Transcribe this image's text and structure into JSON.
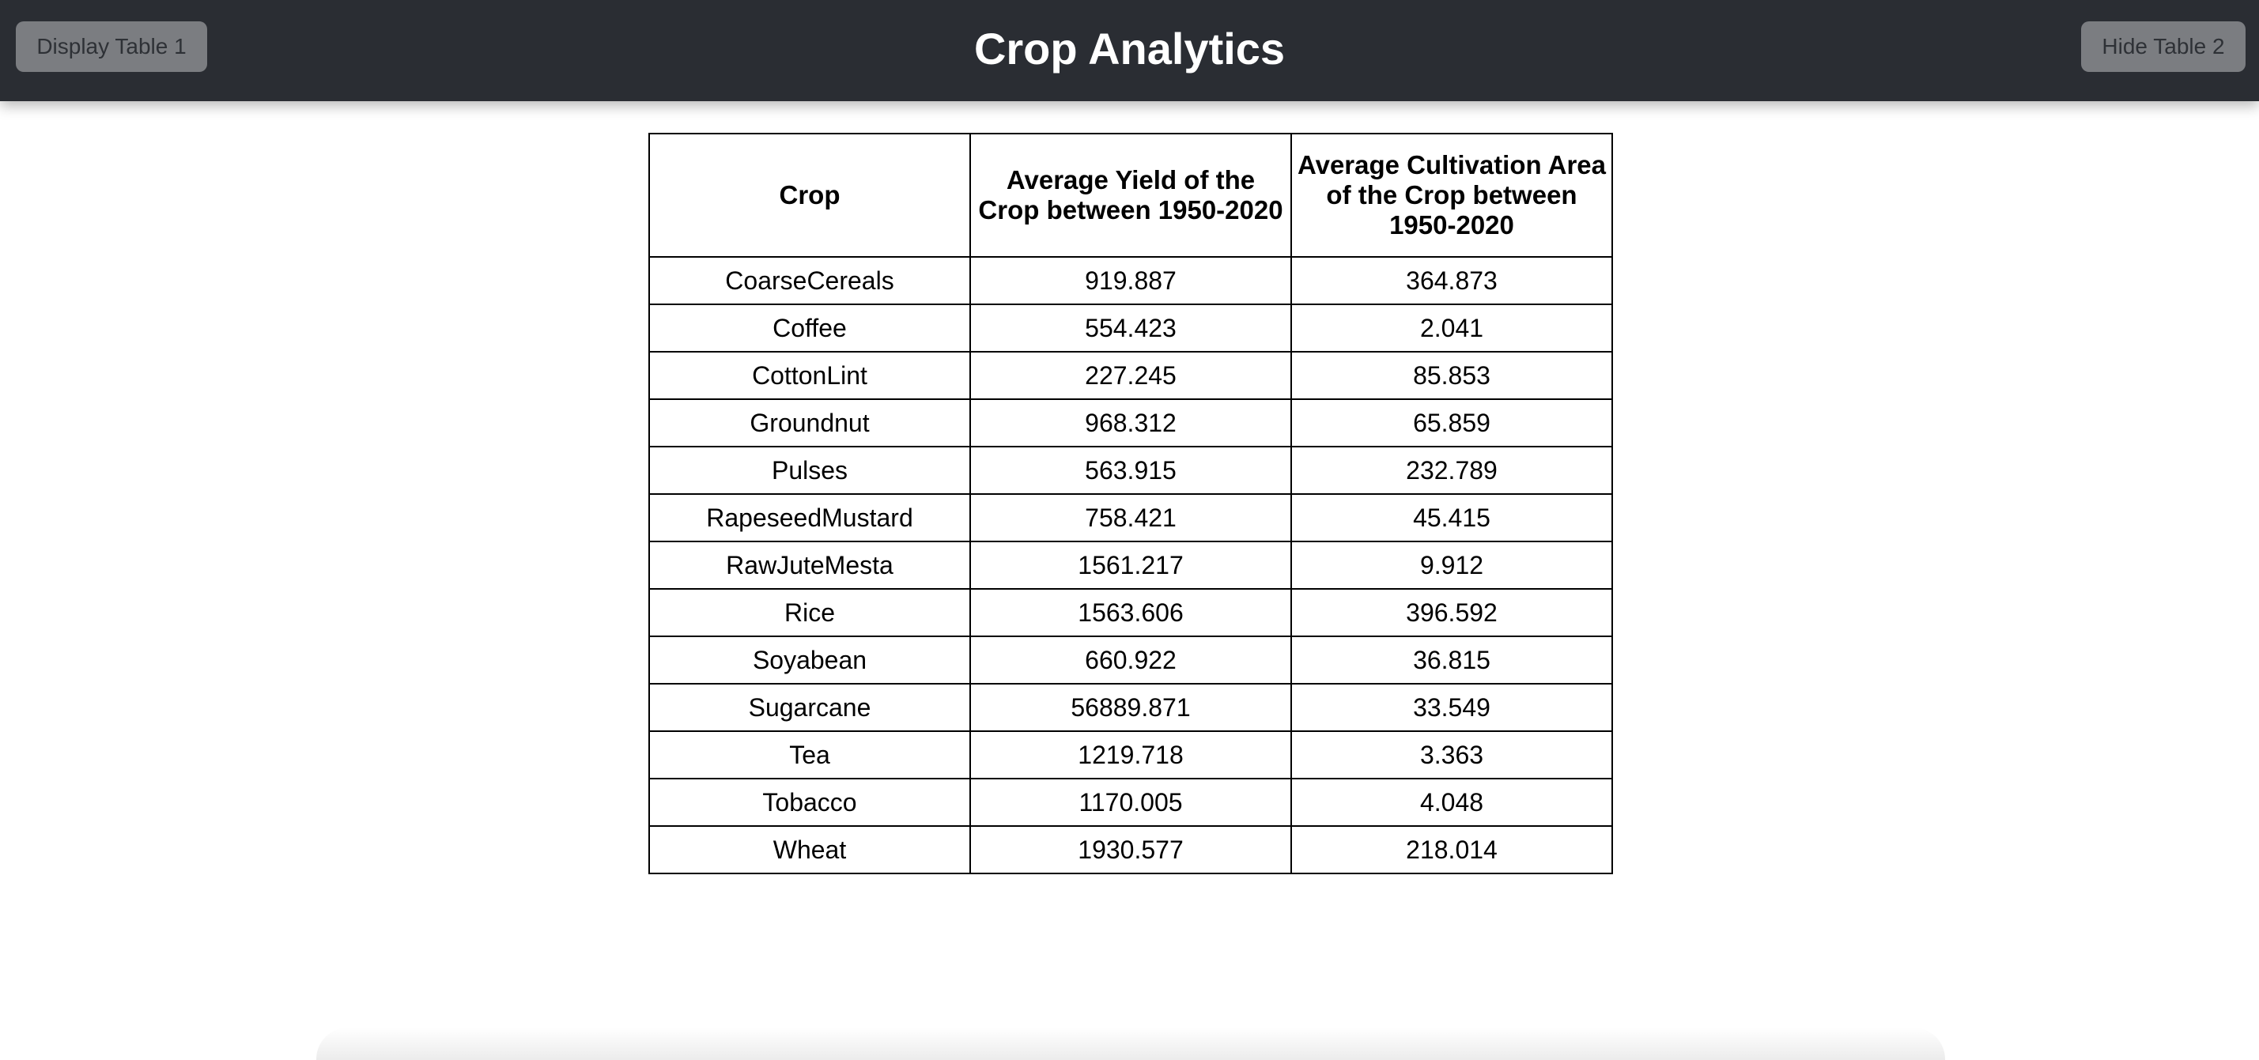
{
  "header": {
    "title": "Crop Analytics",
    "left_button_label": "Display Table 1",
    "right_button_label": "Hide Table 2"
  },
  "table": {
    "columns": [
      "Crop",
      "Average Yield of the Crop between 1950-2020",
      "Average Cultivation Area of the Crop between 1950-2020"
    ],
    "rows": [
      [
        "CoarseCereals",
        "919.887",
        "364.873"
      ],
      [
        "Coffee",
        "554.423",
        "2.041"
      ],
      [
        "CottonLint",
        "227.245",
        "85.853"
      ],
      [
        "Groundnut",
        "968.312",
        "65.859"
      ],
      [
        "Pulses",
        "563.915",
        "232.789"
      ],
      [
        "RapeseedMustard",
        "758.421",
        "45.415"
      ],
      [
        "RawJuteMesta",
        "1561.217",
        "9.912"
      ],
      [
        "Rice",
        "1563.606",
        "396.592"
      ],
      [
        "Soyabean",
        "660.922",
        "36.815"
      ],
      [
        "Sugarcane",
        "56889.871",
        "33.549"
      ],
      [
        "Tea",
        "1219.718",
        "3.363"
      ],
      [
        "Tobacco",
        "1170.005",
        "4.048"
      ],
      [
        "Wheat",
        "1930.577",
        "218.014"
      ]
    ]
  },
  "colors": {
    "header_bg": "#2a2d33",
    "button_bg": "#7b7d81",
    "button_text": "#2e3136",
    "title_text": "#ffffff"
  }
}
